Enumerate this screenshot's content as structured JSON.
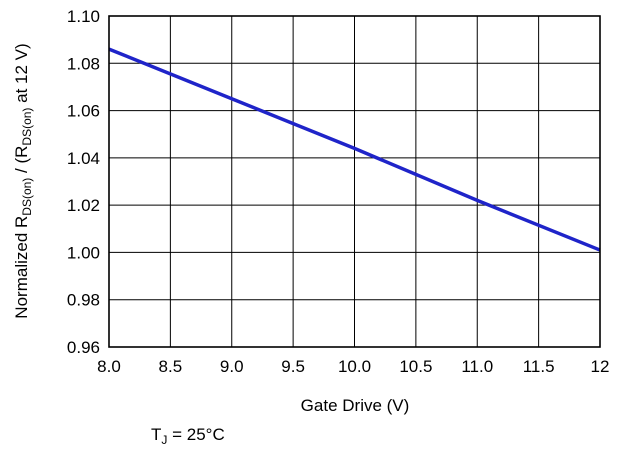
{
  "chart_data": {
    "type": "line",
    "xlabel": "Gate Drive (V)",
    "ylabel_parts": {
      "prefix": "Normalized R",
      "sub1": "DS(on)",
      "mid": " / (R",
      "sub2": "DS(on)",
      "suffix": " at 12 V)"
    },
    "annotation": {
      "main": "T",
      "sub": "J",
      "rest": " = 25°C"
    },
    "xlim": [
      8.0,
      12.0
    ],
    "ylim": [
      0.96,
      1.1
    ],
    "x_ticks": [
      8.0,
      8.5,
      9.0,
      9.5,
      10.0,
      10.5,
      11.0,
      11.5,
      12.0
    ],
    "x_tick_labels": [
      "8.0",
      "8.5",
      "9.0",
      "9.5",
      "10.0",
      "10.5",
      "11.0",
      "11.5",
      "12"
    ],
    "y_ticks": [
      0.96,
      0.98,
      1.0,
      1.02,
      1.04,
      1.06,
      1.08,
      1.1
    ],
    "y_tick_labels": [
      "0.96",
      "0.98",
      "1.00",
      "1.02",
      "1.04",
      "1.06",
      "1.08",
      "1.10"
    ],
    "grid": true,
    "legend": "none",
    "series": [
      {
        "color": "#1f24c9",
        "x": [
          8.0,
          9.0,
          10.0,
          11.0,
          12.0
        ],
        "y": [
          1.086,
          1.065,
          1.044,
          1.022,
          1.001
        ]
      }
    ]
  }
}
